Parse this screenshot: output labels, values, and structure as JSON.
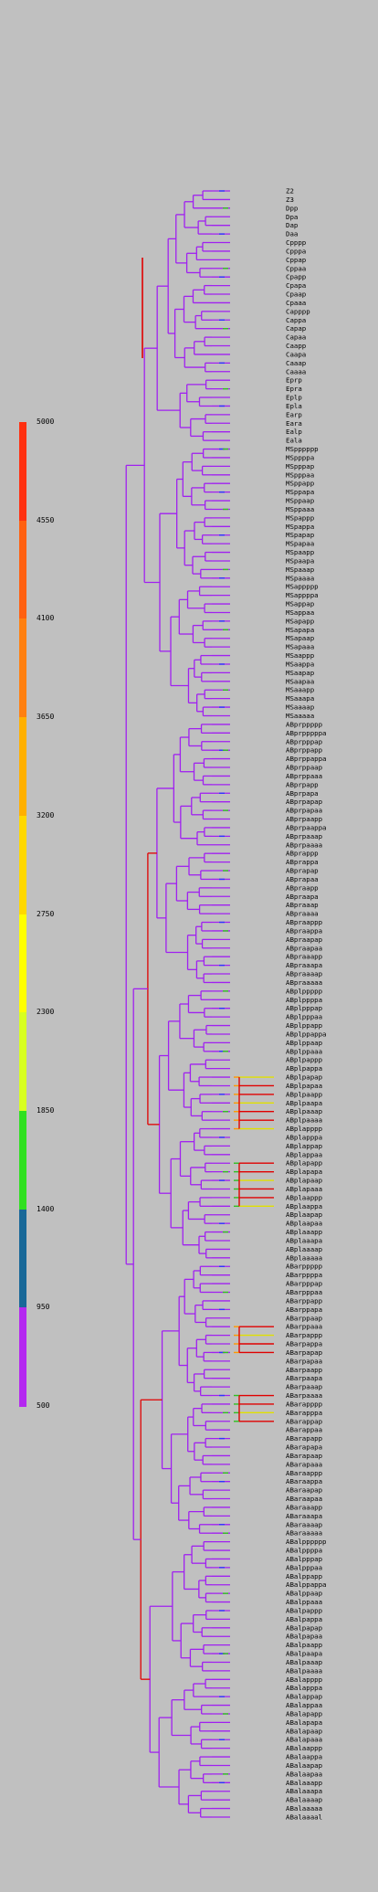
{
  "legend": {
    "ticks": [
      "5000",
      "4550",
      "4100",
      "3650",
      "3200",
      "2750",
      "2300",
      "1850",
      "1400",
      "950",
      "500"
    ],
    "colors": [
      "#ff3010",
      "#ff6010",
      "#ff8010",
      "#ffb000",
      "#ffd800",
      "#ffff00",
      "#d8ff20",
      "#30e020",
      "#186898",
      "#b428f0"
    ]
  },
  "tree": {
    "branch_color": "#a020f0",
    "accent_colors": [
      "#e00000",
      "#3030ff",
      "#30c020",
      "#e0e000",
      "#ff9900"
    ],
    "groups": [
      [
        "Z2",
        "Z3",
        "Dpp",
        "Dpa",
        "Dap",
        "Daa",
        "Cpppp",
        "Cpppa",
        "Cppap",
        "Cppaa",
        "Cpapp",
        "Cpapa",
        "Cpaap",
        "Cpaaa",
        "Capppp",
        "Cappa",
        "Capap",
        "Capaa",
        "Caapp",
        "Caapa",
        "Caaap",
        "Caaaa"
      ],
      [
        "Eprp",
        "Epra",
        "Eplp",
        "Epla",
        "Earp",
        "Eara",
        "Ealp",
        "Eala"
      ],
      [
        "MSpppppp",
        "MSppppa",
        "MSpppap",
        "MSpppaa",
        "MSppapp",
        "MSppapa",
        "MSppaap",
        "MSppaaa",
        "MSpappp",
        "MSpappa",
        "MSpapap",
        "MSpapaa",
        "MSpaapp",
        "MSpaapa",
        "MSpaaap",
        "MSpaaaa"
      ],
      [
        "MSappppp",
        "MSappppa",
        "MSappap",
        "MSappaa",
        "MSapapp",
        "MSapapa",
        "MSapaap",
        "MSapaaa",
        "MSaappp",
        "MSaappa",
        "MSaapap",
        "MSaapaa",
        "MSaaapp",
        "MSaaapa",
        "MSaaaap",
        "MSaaaaa"
      ],
      [
        "ABprppppp",
        "ABprpppppa",
        "ABprpppap",
        "ABprppapp",
        "ABprppappa",
        "ABprppaap",
        "ABprppaaa",
        "ABprpapp",
        "ABprpapa",
        "ABprpapap",
        "ABprpapaa",
        "ABprpaapp",
        "ABprpaappa",
        "ABprpaaap",
        "ABprpaaaa"
      ],
      [
        "ABprappp",
        "ABprappa",
        "ABprapap",
        "ABprapaa",
        "ABpraapp",
        "ABpraapa",
        "ABpraaap",
        "ABpraaaa",
        "ABpraappp",
        "ABpraappa",
        "ABpraapap",
        "ABpraapaa",
        "ABpraaapp",
        "ABpraaapa",
        "ABpraaaap",
        "ABpraaaaa"
      ],
      [
        "ABplppppp",
        "ABplppppa",
        "ABplpppap",
        "ABplpppaa",
        "ABplppapp",
        "ABplppappa",
        "ABplppaap",
        "ABplppaaa",
        "ABplpappp",
        "ABplpappa",
        "ABplpapap",
        "ABplpapaa",
        "ABplpaapp",
        "ABplpaapa",
        "ABplpaaap",
        "ABplpaaaa"
      ],
      [
        "ABplapppp",
        "ABplapppa",
        "ABplappap",
        "ABplappaa",
        "ABplapapp",
        "ABplapapa",
        "ABplapaap",
        "ABplapaaa",
        "ABplaappp",
        "ABplaappa",
        "ABplaapap",
        "ABplaapaa",
        "ABplaaapp",
        "ABplaaapa",
        "ABplaaaap",
        "ABplaaaaa"
      ],
      [
        "ABarppppp",
        "ABarppppa",
        "ABarpppap",
        "ABarpppaa",
        "ABarppapp",
        "ABarppapa",
        "ABarppaap",
        "ABarppaaa",
        "ABarpappp",
        "ABarpappa",
        "ABarpapap",
        "ABarpapaa",
        "ABarpaapp",
        "ABarpaapa",
        "ABarpaaap",
        "ABarpaaaa"
      ],
      [
        "ABarapppp",
        "ABarapppa",
        "ABarappap",
        "ABarappaa",
        "ABarapapp",
        "ABarapapa",
        "ABarapaap",
        "ABarapaaa",
        "ABaraappp",
        "ABaraappa",
        "ABaraapap",
        "ABaraapaa",
        "ABaraaapp",
        "ABaraaapa",
        "ABaraaaap",
        "ABaraaaaa"
      ],
      [
        "ABalpppppp",
        "ABalppppa",
        "ABalpppap",
        "ABalpppaa",
        "ABalppapp",
        "ABalppappa",
        "ABalppaap",
        "ABalppaaa",
        "ABalpappp",
        "ABalpappa",
        "ABalpapap",
        "ABalpapaa",
        "ABalpaapp",
        "ABalpaapa",
        "ABalpaaap",
        "ABalpaaaa"
      ],
      [
        "ABalapppp",
        "ABalapppa",
        "ABalappap",
        "ABalappaa",
        "ABalapapp",
        "ABalapapa",
        "ABalapaap",
        "ABalapaaa",
        "ABalaappp",
        "ABalaappa",
        "ABalaapap",
        "ABalaapaa",
        "ABalaaapp",
        "ABalaaapa",
        "ABalaaaap",
        "ABalaaaaa",
        "ABalaaaal"
      ]
    ]
  }
}
